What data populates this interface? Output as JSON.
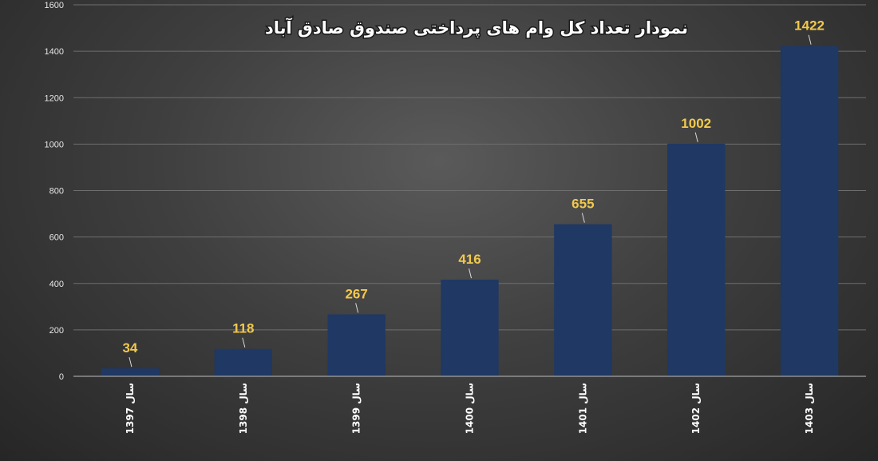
{
  "chart_data": {
    "type": "bar",
    "title": "نمودار تعداد کل وام های پرداختی صندوق صادق آباد",
    "categories": [
      "سال 1397",
      "سال 1398",
      "سال 1399",
      "سال 1400",
      "سال 1401",
      "سال 1402",
      "سال 1403"
    ],
    "values": [
      34,
      118,
      267,
      416,
      655,
      1002,
      1422
    ],
    "data_labels": [
      "34",
      "118",
      "267",
      "416",
      "655",
      "1002",
      "1422"
    ],
    "xlabel": "",
    "ylabel": "",
    "ylim": [
      0,
      1600
    ],
    "y_ticks": [
      0,
      200,
      400,
      600,
      800,
      1000,
      1200,
      1400,
      1600
    ],
    "y_tick_labels": [
      "0",
      "200",
      "400",
      "600",
      "800",
      "1000",
      "1200",
      "1400",
      "1600"
    ],
    "grid": true,
    "legend": "none",
    "colors": {
      "bar": "#1f3864",
      "data_label": "#f2c94c",
      "title": "#ffffff",
      "background": "#3f3f3f"
    }
  }
}
